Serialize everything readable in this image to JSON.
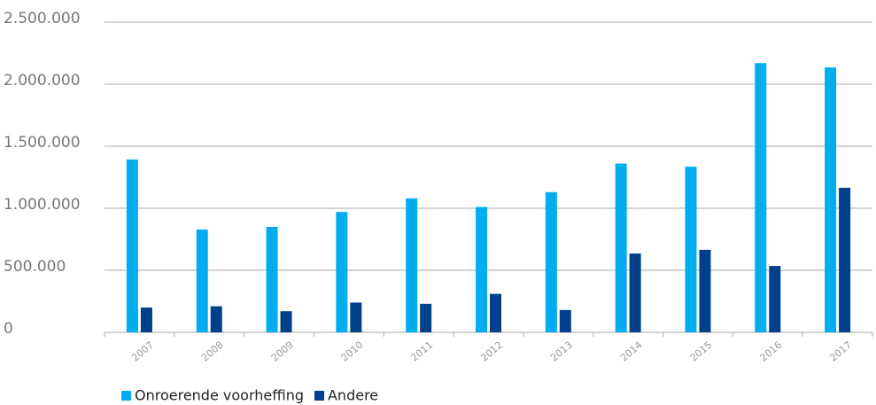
{
  "chart_data": {
    "type": "bar",
    "categories": [
      "2007",
      "2008",
      "2009",
      "2010",
      "2011",
      "2012",
      "2013",
      "2014",
      "2015",
      "2016",
      "2017"
    ],
    "series": [
      {
        "name": "Onroerende voorheffing",
        "color": "#00aeef",
        "values": [
          1393000,
          829000,
          850000,
          970000,
          1080000,
          1010000,
          1130000,
          1360000,
          1335000,
          2170000,
          2135000
        ]
      },
      {
        "name": "Andere",
        "color": "#003f8a",
        "values": [
          200000,
          210000,
          170000,
          240000,
          230000,
          310000,
          180000,
          635000,
          665000,
          535000,
          1165000
        ]
      }
    ],
    "ylim": [
      0,
      2500000
    ],
    "yticks": [
      0,
      {
        "value": 500000,
        "label": "500.000"
      },
      {
        "value": 1000000,
        "label": "1.000.000"
      },
      {
        "value": 1500000,
        "label": "1.500.000"
      },
      {
        "value": 2000000,
        "label": "2.000.000"
      },
      {
        "value": 2500000,
        "label": "2.500.000"
      }
    ],
    "grid": true,
    "legend": "bottom-left"
  }
}
